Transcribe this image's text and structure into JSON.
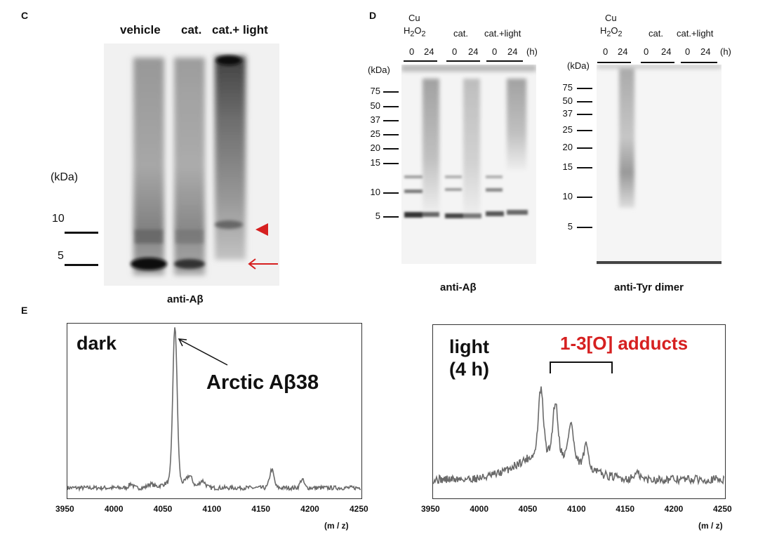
{
  "panels": {
    "C": {
      "letter": "C",
      "lanes": [
        "vehicle",
        "cat.",
        "cat.+ light"
      ],
      "unit": "(kDa)",
      "markers": [
        "10",
        "5"
      ],
      "caption": "anti-Aβ",
      "arrowhead_color": "#d62020",
      "arrow_color": "#d62020"
    },
    "D": {
      "letter": "D",
      "left": {
        "groups": [
          "Cu",
          "cat.",
          "cat.+light"
        ],
        "cu_sub": "H2O2",
        "times": [
          "0",
          "24",
          "0",
          "24",
          "0",
          "24"
        ],
        "unit_h": "(h)",
        "unit": "(kDa)",
        "markers": [
          "75",
          "50",
          "37",
          "25",
          "20",
          "15",
          "10",
          "5"
        ],
        "caption": "anti-Aβ"
      },
      "right": {
        "groups": [
          "Cu",
          "cat.",
          "cat.+light"
        ],
        "cu_sub": "H2O2",
        "times": [
          "0",
          "24",
          "0",
          "24",
          "0",
          "24"
        ],
        "unit_h": "(h)",
        "unit": "(kDa)",
        "markers": [
          "75",
          "50",
          "37",
          "25",
          "20",
          "15",
          "10",
          "5"
        ],
        "caption": "anti-Tyr dimer"
      }
    },
    "E": {
      "letter": "E",
      "left": {
        "label": "dark",
        "annotation": "Arctic Aβ38",
        "x_ticks": [
          "3950",
          "4000",
          "4050",
          "4100",
          "4150",
          "4200",
          "4250"
        ],
        "x_unit": "(m / z)"
      },
      "right": {
        "label_line1": "light",
        "label_line2": "(4 h)",
        "annotation": "1-3[O] adducts",
        "annotation_color": "#d62020",
        "x_ticks": [
          "3950",
          "4000",
          "4050",
          "4100",
          "4150",
          "4200",
          "4250"
        ],
        "x_unit": "(m / z)"
      }
    }
  }
}
